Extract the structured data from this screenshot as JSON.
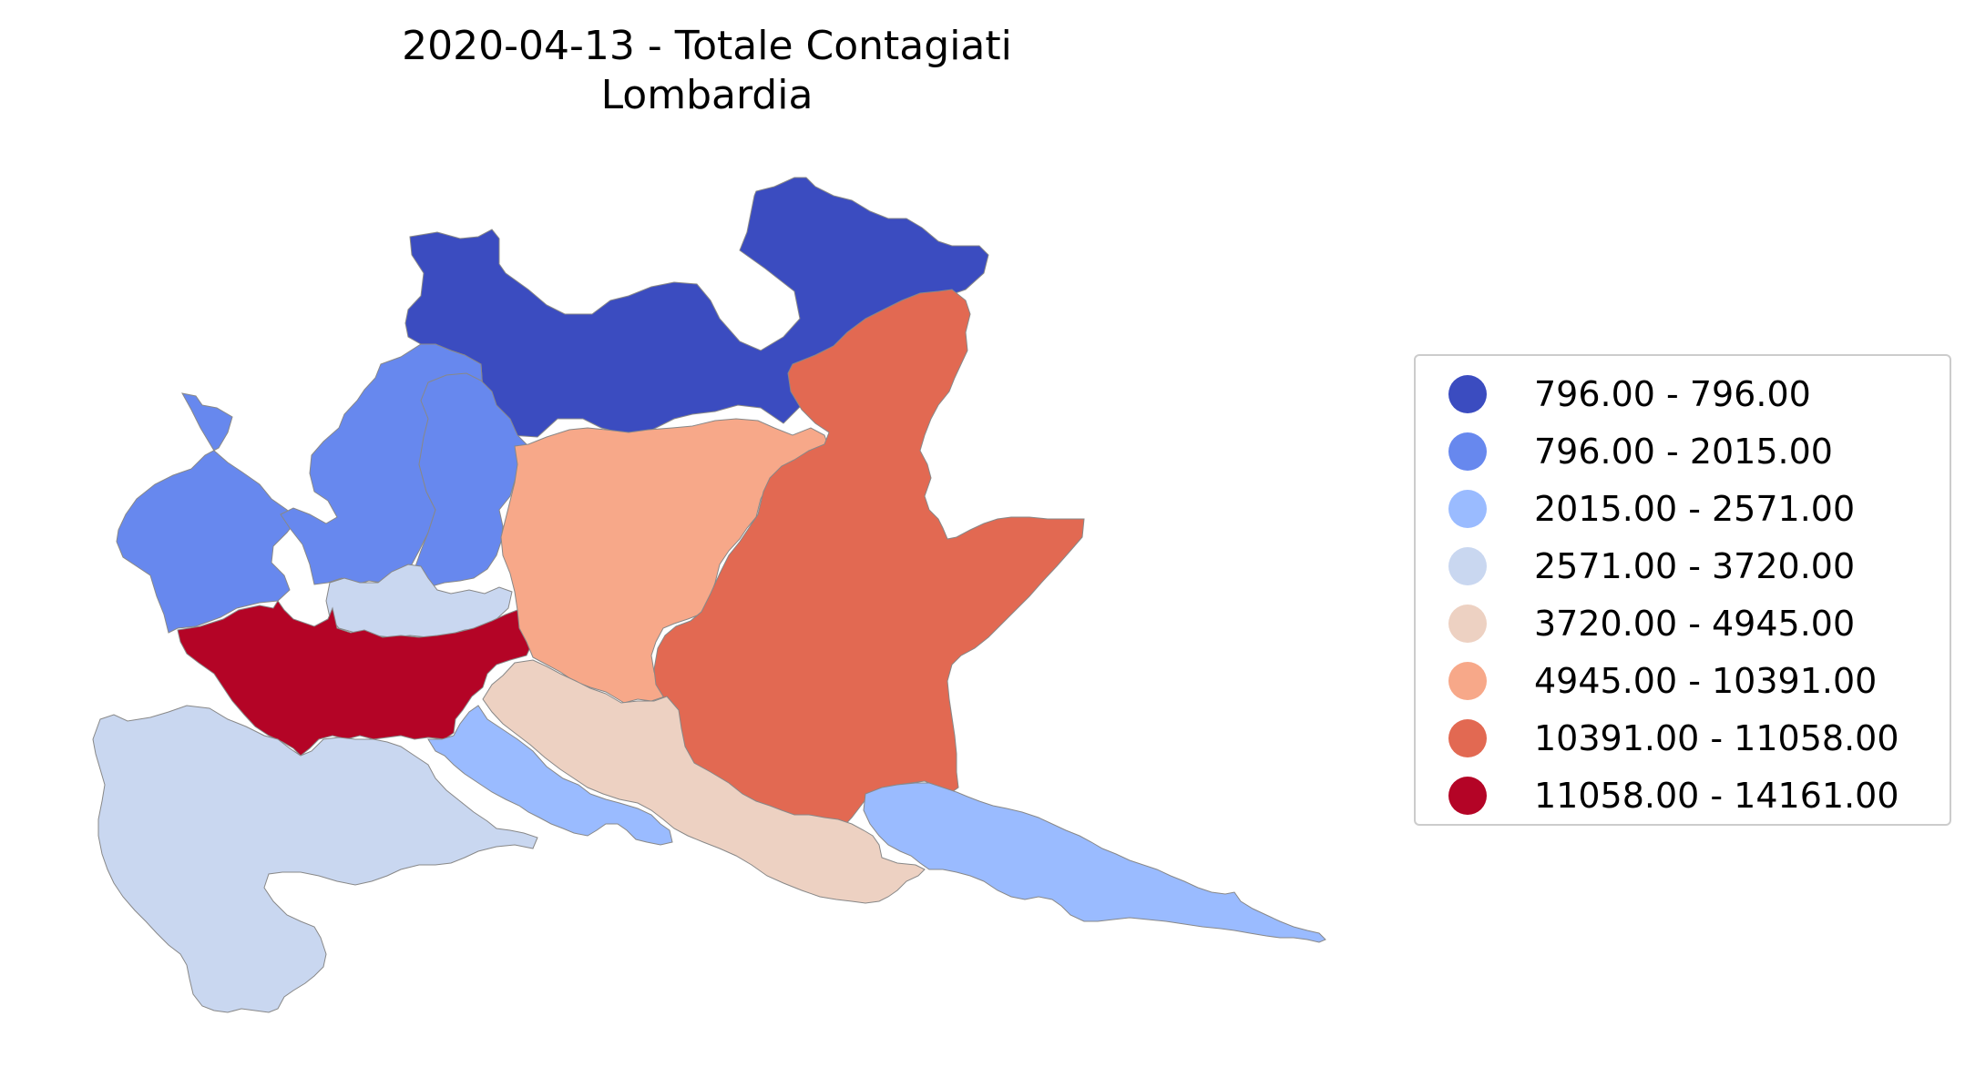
{
  "title": {
    "line1": "2020-04-13 - Totale Contagiati",
    "line2": "Lombardia"
  },
  "legend": {
    "items": [
      {
        "label": "796.00 - 796.00",
        "color": "#3b4cc0"
      },
      {
        "label": "796.00 - 2015.00",
        "color": "#6788ee"
      },
      {
        "label": "2015.00 - 2571.00",
        "color": "#9abbff"
      },
      {
        "label": "2571.00 - 3720.00",
        "color": "#c9d7f0"
      },
      {
        "label": "3720.00 - 4945.00",
        "color": "#edd1c2"
      },
      {
        "label": "4945.00 - 10391.00",
        "color": "#f7a889"
      },
      {
        "label": "10391.00 - 11058.00",
        "color": "#e26952"
      },
      {
        "label": "11058.00 - 14161.00",
        "color": "#b40426"
      }
    ]
  },
  "map": {
    "colormap": "coolwarm",
    "border_color": "#888888"
  }
}
